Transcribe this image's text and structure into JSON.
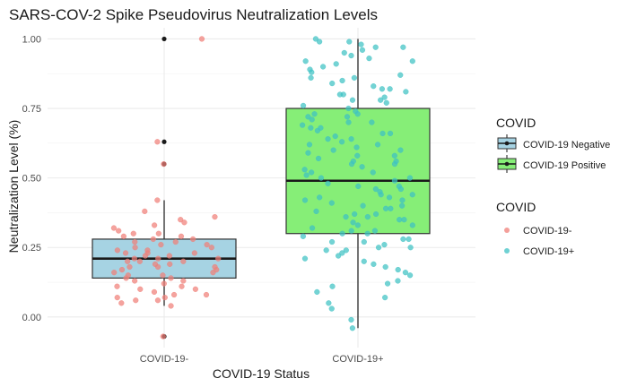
{
  "chart_data": {
    "type": "box",
    "title": "SARS-COV-2 Spike Pseudovirus Neutralization Levels",
    "xlabel": "COVID-19 Status",
    "ylabel": "Neutralization Level (%)",
    "categories": [
      "COVID-19-",
      "COVID-19+"
    ],
    "ylim": [
      -0.11,
      1.04
    ],
    "yticks": [
      0.0,
      0.25,
      0.5,
      0.75,
      1.0
    ],
    "ytick_labels": [
      "0.00",
      "0.25",
      "0.50",
      "0.75",
      "1.00"
    ],
    "grid": true,
    "boxes": [
      {
        "category": "COVID-19-",
        "group": "COVID-19 Negative",
        "fill": "#a6d3e3",
        "whisker_low": 0.04,
        "q1": 0.14,
        "median": 0.21,
        "q3": 0.28,
        "whisker_high": 0.42,
        "outliers": [
          1.0,
          0.63,
          0.55,
          -0.07
        ]
      },
      {
        "category": "COVID-19+",
        "group": "COVID-19 Positive",
        "fill": "#86ee77",
        "whisker_low": -0.04,
        "q1": 0.3,
        "median": 0.49,
        "q3": 0.75,
        "whisker_high": 1.0,
        "outliers": []
      }
    ],
    "points": [
      {
        "series": "COVID-19-",
        "color": "#f07f78",
        "y": [
          -0.07,
          0.04,
          0.05,
          0.06,
          0.06,
          0.07,
          0.07,
          0.08,
          0.08,
          0.09,
          0.1,
          0.1,
          0.11,
          0.11,
          0.12,
          0.13,
          0.13,
          0.14,
          0.14,
          0.15,
          0.15,
          0.16,
          0.16,
          0.17,
          0.17,
          0.18,
          0.18,
          0.18,
          0.19,
          0.19,
          0.2,
          0.2,
          0.2,
          0.21,
          0.21,
          0.21,
          0.22,
          0.22,
          0.23,
          0.23,
          0.23,
          0.24,
          0.24,
          0.25,
          0.25,
          0.26,
          0.26,
          0.27,
          0.27,
          0.28,
          0.28,
          0.29,
          0.29,
          0.3,
          0.3,
          0.31,
          0.32,
          0.33,
          0.34,
          0.35,
          0.36,
          0.38,
          0.42,
          0.55,
          0.63,
          1.0
        ]
      },
      {
        "series": "COVID-19+",
        "color": "#3fc2c4",
        "y": [
          -0.04,
          -0.01,
          0.03,
          0.05,
          0.07,
          0.09,
          0.11,
          0.12,
          0.13,
          0.15,
          0.16,
          0.17,
          0.18,
          0.19,
          0.2,
          0.21,
          0.22,
          0.23,
          0.24,
          0.24,
          0.25,
          0.26,
          0.27,
          0.28,
          0.29,
          0.3,
          0.3,
          0.31,
          0.32,
          0.33,
          0.34,
          0.35,
          0.36,
          0.37,
          0.38,
          0.39,
          0.4,
          0.41,
          0.42,
          0.43,
          0.44,
          0.45,
          0.46,
          0.47,
          0.48,
          0.49,
          0.5,
          0.51,
          0.52,
          0.53,
          0.54,
          0.55,
          0.56,
          0.57,
          0.58,
          0.59,
          0.6,
          0.61,
          0.62,
          0.63,
          0.64,
          0.65,
          0.66,
          0.67,
          0.68,
          0.69,
          0.7,
          0.71,
          0.72,
          0.73,
          0.74,
          0.75,
          0.76,
          0.77,
          0.78,
          0.79,
          0.8,
          0.81,
          0.82,
          0.83,
          0.84,
          0.85,
          0.86,
          0.87,
          0.88,
          0.89,
          0.9,
          0.91,
          0.92,
          0.93,
          0.94,
          0.95,
          0.96,
          0.97,
          0.98,
          0.99,
          1.0,
          0.42,
          0.37,
          0.33,
          0.28,
          0.62,
          0.56,
          0.5,
          0.46,
          0.7,
          0.73,
          0.78,
          0.82,
          0.35,
          0.4,
          0.44,
          0.52,
          0.58,
          0.64,
          0.68,
          0.25,
          0.27,
          0.31,
          0.36,
          0.39,
          0.43,
          0.47,
          0.55,
          0.6,
          0.66,
          0.72,
          0.8,
          0.86,
          0.92,
          0.97,
          0.99
        ]
      }
    ],
    "legend": {
      "position": "right",
      "box_title": "COVID",
      "box_items": [
        {
          "label": "COVID-19 Negative",
          "fill": "#a6d3e3"
        },
        {
          "label": "COVID-19 Positive",
          "fill": "#86ee77"
        }
      ],
      "point_title": "COVID",
      "point_items": [
        {
          "label": "COVID-19-",
          "color": "#f07f78"
        },
        {
          "label": "COVID-19+",
          "color": "#3fc2c4"
        }
      ]
    }
  }
}
